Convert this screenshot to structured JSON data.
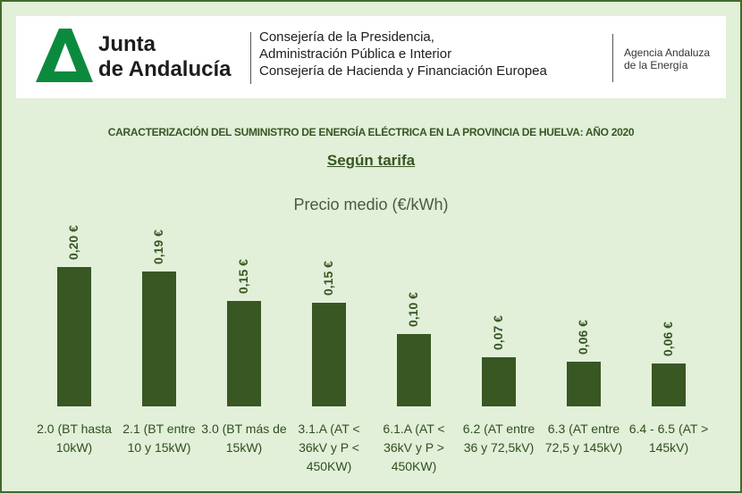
{
  "header": {
    "logo_line1": "Junta",
    "logo_line2": "de Andalucía",
    "department_lines": [
      "Consejería de la Presidencia,",
      "Administración Pública e Interior",
      "Consejería de Hacienda y Financiación Europea"
    ],
    "agency_lines": [
      "Agencia Andaluza",
      "de la Energía"
    ]
  },
  "chart_data": {
    "type": "bar",
    "title": "CARACTERIZACIÓN DEL SUMINISTRO DE ENERGÍA ELÉCTRICA EN LA PROVINCIA DE HUELVA:  AÑO 2020",
    "subtitle": "Según tarifa",
    "series_title": "Precio medio (€/kWh)",
    "categories": [
      "2.0 (BT hasta 10kW)",
      "2.1 (BT entre 10 y 15kW)",
      "3.0 (BT más de 15kW)",
      "3.1.A (AT < 36kV y P < 450KW)",
      "6.1.A (AT < 36kV y P > 450KW)",
      "6.2 (AT entre 36 y 72,5kV)",
      "6.3 (AT entre 72,5 y 145kV)",
      "6.4 - 6.5 (AT > 145kV)"
    ],
    "values": [
      0.2,
      0.194,
      0.151,
      0.149,
      0.104,
      0.071,
      0.064,
      0.062
    ],
    "value_labels": [
      "0,20 €",
      "0,19 €",
      "0,15 €",
      "0,15 €",
      "0,10 €",
      "0,07 €",
      "0,06 €",
      "0,06 €"
    ],
    "color": "#385723"
  }
}
